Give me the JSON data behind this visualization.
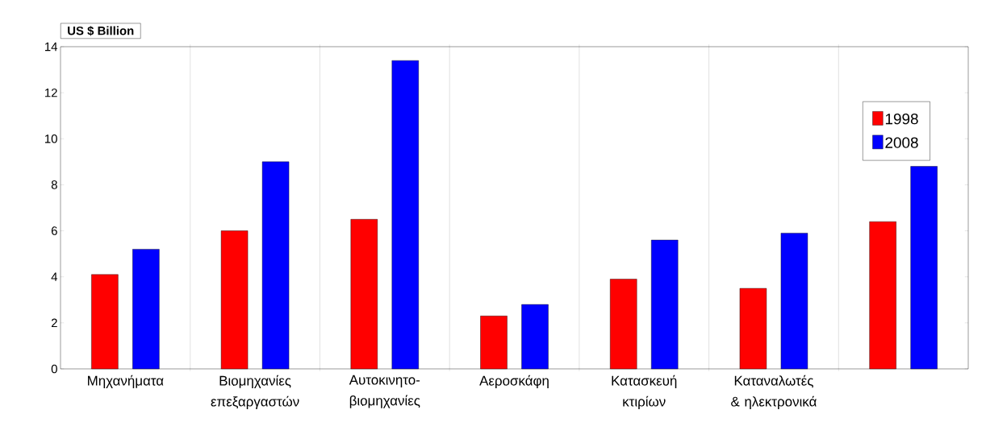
{
  "chart_data": {
    "type": "bar",
    "ylabel": "US $ Billion",
    "categories": [
      "Μηχανήματα",
      "Βιομηχανίες επεξαργαστών",
      "Αυτοκινητο- βιομηχανίες",
      "Αεροσκάφη",
      "Κατασκευή κτιρίων",
      "Καταναλωτές & ηλεκτρονικά",
      null
    ],
    "series": [
      {
        "name": "1998",
        "color": "#ff0000",
        "values": [
          4.1,
          6.0,
          6.5,
          2.3,
          3.9,
          3.5,
          6.4
        ]
      },
      {
        "name": "2008",
        "color": "#0000ff",
        "values": [
          5.2,
          9.0,
          13.4,
          2.8,
          5.6,
          5.9,
          8.8
        ]
      }
    ],
    "ylim": [
      0,
      14
    ],
    "yticks": [
      0,
      2,
      4,
      6,
      8,
      10,
      12,
      14
    ],
    "grid": "x",
    "legend": "top right"
  }
}
